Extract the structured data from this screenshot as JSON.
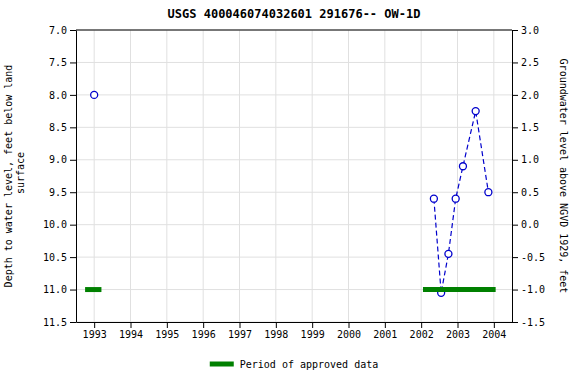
{
  "chart_data": {
    "type": "line",
    "title": "USGS 400046074032601 291676-- OW-1D",
    "y_label": "Depth to water level, feet below land\n surface",
    "y2_label": "Groundwater level above NGVD 1929, feet",
    "xlim": [
      1992.5,
      2004.5
    ],
    "xticks": [
      1993,
      1994,
      1995,
      1996,
      1997,
      1998,
      1999,
      2000,
      2001,
      2002,
      2003,
      2004
    ],
    "ylim": [
      11.5,
      7.0
    ],
    "yticks": [
      {
        "value": 7.0,
        "label": "7.0"
      },
      {
        "value": 7.5,
        "label": "7.5"
      },
      {
        "value": 8.0,
        "label": "8.0"
      },
      {
        "value": 8.5,
        "label": "8.5"
      },
      {
        "value": 9.0,
        "label": "9.0"
      },
      {
        "value": 9.5,
        "label": "9.5"
      },
      {
        "value": 10.0,
        "label": "10.0"
      },
      {
        "value": 10.5,
        "label": "10.5"
      },
      {
        "value": 11.0,
        "label": "11.0"
      },
      {
        "value": 11.5,
        "label": "11.5"
      }
    ],
    "y2lim": [
      -1.5,
      3.0
    ],
    "y2ticks": [
      {
        "value": 3.0,
        "label": "3.0"
      },
      {
        "value": 2.5,
        "label": "2.5"
      },
      {
        "value": 2.0,
        "label": "2.0"
      },
      {
        "value": 1.5,
        "label": "1.5"
      },
      {
        "value": 1.0,
        "label": "1.0"
      },
      {
        "value": 0.5,
        "label": "0.5"
      },
      {
        "value": 0.0,
        "label": "0.0"
      },
      {
        "value": -0.5,
        "label": "-0.5"
      },
      {
        "value": -1.0,
        "label": "-1.0"
      },
      {
        "value": -1.5,
        "label": "-1.5"
      }
    ],
    "grid": true,
    "legend": "bottom",
    "series": [
      {
        "type": "scatter",
        "x": [
          1993.0
        ],
        "values": [
          8.0
        ],
        "color": "#0000cc",
        "marker": "circle"
      },
      {
        "type": "line",
        "x": [
          2002.35,
          2002.55,
          2002.75,
          2002.95,
          2003.15,
          2003.5,
          2003.85
        ],
        "values": [
          9.6,
          11.05,
          10.45,
          9.6,
          9.1,
          8.25,
          9.5
        ],
        "color": "#0000cc",
        "marker": "circle",
        "line_style": "dashed"
      },
      {
        "type": "interval",
        "name": "Period of approved data",
        "color": "#008000",
        "x_start": [
          1992.75,
          2002.05
        ],
        "x_end": [
          1993.2,
          2004.05
        ],
        "values": [
          11.0,
          11.0
        ]
      }
    ]
  }
}
